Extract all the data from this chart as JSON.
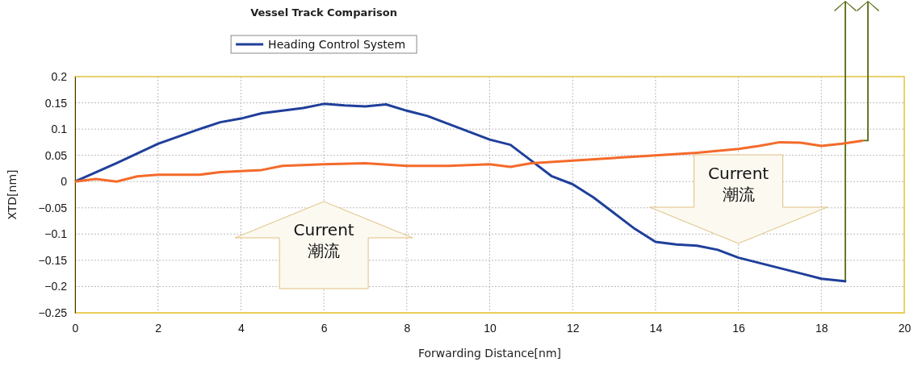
{
  "chart_data": {
    "type": "line",
    "title": "Vessel Track Comparison",
    "xlabel": "Forwarding Distance[nm]",
    "ylabel": "XTD[nm]",
    "xlim": [
      0,
      20
    ],
    "xticks": [
      0,
      2,
      4,
      6,
      8,
      10,
      12,
      14,
      16,
      18,
      20
    ],
    "ylim": [
      -0.25,
      0.2
    ],
    "yticks": [
      0.2,
      0.15,
      0.1,
      0.05,
      0,
      -0.05,
      -0.1,
      -0.15,
      -0.2,
      -0.25
    ],
    "grid": true,
    "legend": "top",
    "marker": "none",
    "line_style": "solid",
    "annotations": [
      "Current\n潮流",
      "Current\n潮流"
    ],
    "series": [
      {
        "name": "Heading Control System",
        "color": "#1f3f9a",
        "x": [
          0,
          1,
          2,
          3,
          3.5,
          4,
          4.5,
          5,
          5.5,
          6,
          6.5,
          7,
          7.5,
          8,
          8.5,
          9,
          9.5,
          10,
          10.5,
          11,
          11.5,
          12,
          12.5,
          13,
          13.5,
          14,
          14.5,
          15,
          15.5,
          16,
          16.5,
          17,
          17.5,
          18,
          18.6
        ],
        "values": [
          0,
          0.035,
          0.072,
          0.1,
          0.113,
          0.12,
          0.13,
          0.135,
          0.14,
          0.148,
          0.145,
          0.143,
          0.147,
          0.135,
          0.125,
          0.11,
          0.095,
          0.08,
          0.07,
          0.04,
          0.01,
          -0.005,
          -0.03,
          -0.06,
          -0.09,
          -0.115,
          -0.12,
          -0.122,
          -0.13,
          -0.145,
          -0.155,
          -0.165,
          -0.175,
          -0.185,
          -0.19
        ]
      },
      {
        "color": "#f46a2a",
        "x": [
          0,
          0.5,
          1,
          1.5,
          2,
          3,
          3.5,
          4,
          4.5,
          5,
          6,
          7,
          8,
          9,
          10,
          10.5,
          11,
          12,
          13,
          14,
          15,
          16,
          16.5,
          17,
          17.5,
          18,
          18.5,
          19
        ],
        "values": [
          0,
          0.005,
          0,
          0.01,
          0.013,
          0.013,
          0.018,
          0.02,
          0.022,
          0.03,
          0.033,
          0.035,
          0.03,
          0.03,
          0.033,
          0.028,
          0.035,
          0.04,
          0.045,
          0.05,
          0.055,
          0.062,
          0.068,
          0.075,
          0.074,
          0.068,
          0.072,
          0.078
        ]
      }
    ]
  }
}
